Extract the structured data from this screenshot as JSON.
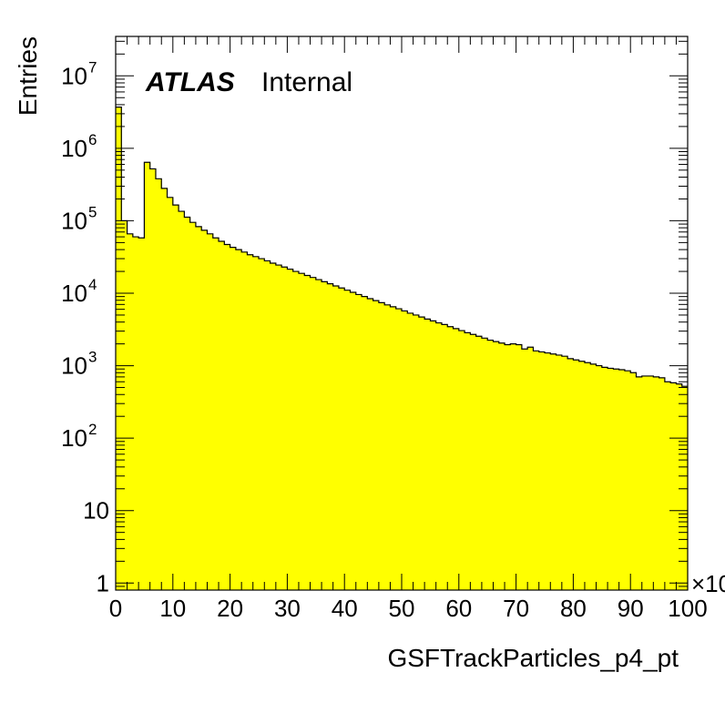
{
  "chart_data": {
    "type": "histogram",
    "title": "",
    "xlabel": "GSFTrackParticles_p4_pt",
    "ylabel": "Entries",
    "x_multiplier_label": "×10",
    "xlim": [
      0,
      100
    ],
    "ylim": [
      0.8,
      35000000
    ],
    "y_scale": "log",
    "grid": false,
    "fill_color": "#ffff00",
    "line_color": "#000000",
    "annotation": {
      "bold": "ATLAS",
      "normal": "Internal"
    },
    "x_ticks": [
      {
        "value": 0,
        "label": "0"
      },
      {
        "value": 10,
        "label": "10"
      },
      {
        "value": 20,
        "label": "20"
      },
      {
        "value": 30,
        "label": "30"
      },
      {
        "value": 40,
        "label": "40"
      },
      {
        "value": 50,
        "label": "50"
      },
      {
        "value": 60,
        "label": "60"
      },
      {
        "value": 70,
        "label": "70"
      },
      {
        "value": 80,
        "label": "80"
      },
      {
        "value": 90,
        "label": "90"
      },
      {
        "value": 100,
        "label": "100"
      }
    ],
    "y_ticks": [
      {
        "value": 1,
        "base": "1",
        "exp": ""
      },
      {
        "value": 10,
        "base": "10",
        "exp": ""
      },
      {
        "value": 100,
        "base": "10",
        "exp": "2"
      },
      {
        "value": 1000,
        "base": "10",
        "exp": "3"
      },
      {
        "value": 10000,
        "base": "10",
        "exp": "4"
      },
      {
        "value": 100000,
        "base": "10",
        "exp": "5"
      },
      {
        "value": 1000000,
        "base": "10",
        "exp": "6"
      },
      {
        "value": 10000000,
        "base": "10",
        "exp": "7"
      }
    ],
    "bin_width": 1,
    "bin_start": 0,
    "values": [
      3700000,
      100000,
      66000,
      60000,
      58000,
      640000,
      520000,
      380000,
      280000,
      210000,
      165000,
      135000,
      112000,
      95000,
      83000,
      74000,
      66000,
      58000,
      52000,
      47000,
      43000,
      40000,
      37000,
      34000,
      32000,
      30000,
      28000,
      26000,
      24500,
      23000,
      21500,
      20000,
      18800,
      17600,
      16500,
      15400,
      14400,
      13500,
      12600,
      11800,
      11000,
      10300,
      9600,
      9000,
      8400,
      7900,
      7400,
      6900,
      6500,
      6100,
      5700,
      5300,
      5000,
      4700,
      4400,
      4150,
      3900,
      3700,
      3450,
      3250,
      3050,
      2850,
      2700,
      2550,
      2400,
      2250,
      2150,
      2050,
      1950,
      2000,
      1950,
      1700,
      1800,
      1600,
      1550,
      1500,
      1450,
      1400,
      1350,
      1250,
      1200,
      1150,
      1100,
      1050,
      1000,
      950,
      920,
      900,
      880,
      850,
      800,
      700,
      720,
      720,
      700,
      680,
      600,
      580,
      560,
      520
    ]
  }
}
